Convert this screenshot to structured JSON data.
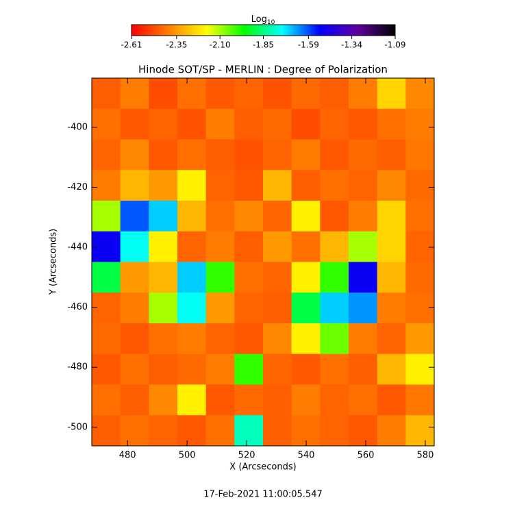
{
  "chart_data": {
    "type": "heatmap",
    "title": "Hinode SOT/SP - MERLIN : Degree of Polarization",
    "x_label": "X (Arcseconds)",
    "y_label": "Y (Arcseconds)",
    "footer": "17-Feb-2021 11:00:05.547",
    "colorbar_label": "Log",
    "colorbar_label_subscript": "10",
    "xlim": [
      468,
      583
    ],
    "ylim": [
      -383.6,
      -506.2
    ],
    "xticks": [
      480,
      500,
      520,
      540,
      560,
      580
    ],
    "yticks": [
      -400,
      -420,
      -440,
      -460,
      -480,
      -500
    ],
    "clim": [
      -2.61,
      -1.09
    ],
    "cticks": [
      -2.61,
      -2.35,
      {
        "value": -2.1,
        "label": "-2.10"
      },
      -1.85,
      -1.59,
      -1.34,
      -1.09
    ],
    "colormap": [
      "#ff0000",
      "#ff8000",
      "#ffff00",
      "#00ff00",
      "#00ffff",
      "#0000ff",
      "#6000a0",
      "#000000"
    ],
    "z": [
      [
        -2.45,
        -2.4,
        -2.48,
        -2.42,
        -2.46,
        -2.44,
        -2.47,
        -2.43,
        -2.45,
        -2.4,
        -2.25,
        -2.38
      ],
      [
        -2.42,
        -2.46,
        -2.44,
        -2.47,
        -2.4,
        -2.45,
        -2.43,
        -2.48,
        -2.44,
        -2.46,
        -2.42,
        -2.4
      ],
      [
        -2.44,
        -2.38,
        -2.46,
        -2.42,
        -2.45,
        -2.47,
        -2.44,
        -2.4,
        -2.46,
        -2.43,
        -2.45,
        -2.41
      ],
      [
        -2.4,
        -2.3,
        -2.35,
        -2.2,
        -2.44,
        -2.46,
        -2.3,
        -2.45,
        -2.42,
        -2.44,
        -2.38,
        -2.43
      ],
      [
        -2.1,
        -1.6,
        -1.7,
        -2.3,
        -2.42,
        -2.38,
        -2.44,
        -2.2,
        -2.46,
        -2.4,
        -2.25,
        -2.42
      ],
      [
        -1.5,
        -1.75,
        -2.2,
        -2.44,
        -2.4,
        -2.45,
        -2.35,
        -2.42,
        -2.3,
        -2.1,
        -2.25,
        -2.44
      ],
      [
        -1.9,
        -2.35,
        -2.3,
        -1.7,
        -2.0,
        -2.42,
        -2.44,
        -2.2,
        -2.0,
        -1.5,
        -2.3,
        -2.43
      ],
      [
        -2.44,
        -2.4,
        -2.1,
        -1.75,
        -2.35,
        -2.44,
        -2.45,
        -1.9,
        -1.7,
        -1.65,
        -2.4,
        -2.42
      ],
      [
        -2.43,
        -2.46,
        -2.42,
        -2.4,
        -2.44,
        -2.46,
        -2.38,
        -2.2,
        -2.05,
        -2.4,
        -2.44,
        -2.35
      ],
      [
        -2.46,
        -2.42,
        -2.45,
        -2.43,
        -2.4,
        -2.0,
        -2.44,
        -2.46,
        -2.42,
        -2.45,
        -2.3,
        -2.2
      ],
      [
        -2.42,
        -2.45,
        -2.38,
        -2.2,
        -2.46,
        -2.43,
        -2.45,
        -2.4,
        -2.44,
        -2.42,
        -2.46,
        -2.41
      ],
      [
        -2.45,
        -2.42,
        -2.44,
        -2.46,
        -2.42,
        -1.8,
        -2.45,
        -2.42,
        -2.44,
        -2.46,
        -2.4,
        -2.3
      ]
    ]
  }
}
